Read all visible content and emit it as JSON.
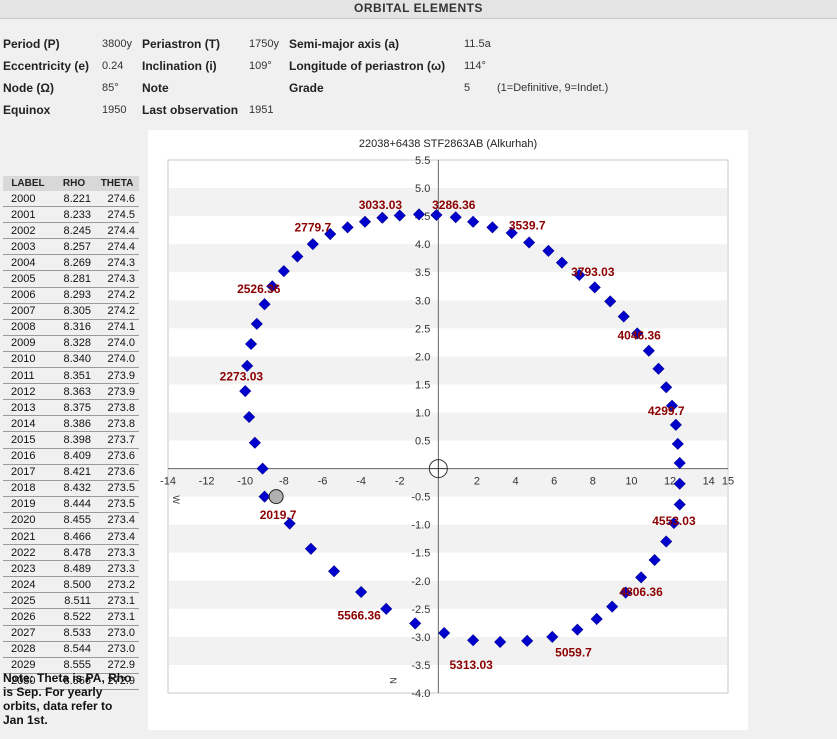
{
  "header": {
    "title": "ORBITAL ELEMENTS"
  },
  "elements": {
    "period": {
      "label": "Period (P)",
      "value": "3800y"
    },
    "periastron": {
      "label": "Periastron (T)",
      "value": "1750y"
    },
    "semimajor": {
      "label": "Semi-major axis (a)",
      "value": "11.5a"
    },
    "eccentricity": {
      "label": "Eccentricity (e)",
      "value": "0.24"
    },
    "inclination": {
      "label": "Inclination (i)",
      "value": "109°"
    },
    "longitude": {
      "label": "Longitude of periastron (ω)",
      "value": "114°"
    },
    "node": {
      "label": "Node (Ω)",
      "value": "85°"
    },
    "note": {
      "label": "Note",
      "value": ""
    },
    "grade": {
      "label": "Grade",
      "value": "5",
      "scale": "(1=Definitive, 9=Indet.)"
    },
    "equinox": {
      "label": "Equinox",
      "value": "1950"
    },
    "lastobs": {
      "label": "Last observation",
      "value": "1951"
    }
  },
  "table": {
    "headers": [
      "LABEL",
      "RHO",
      "THETA"
    ],
    "rows": [
      [
        "2000",
        "8.221",
        "274.6"
      ],
      [
        "2001",
        "8.233",
        "274.5"
      ],
      [
        "2002",
        "8.245",
        "274.4"
      ],
      [
        "2003",
        "8.257",
        "274.4"
      ],
      [
        "2004",
        "8.269",
        "274.3"
      ],
      [
        "2005",
        "8.281",
        "274.3"
      ],
      [
        "2006",
        "8.293",
        "274.2"
      ],
      [
        "2007",
        "8.305",
        "274.2"
      ],
      [
        "2008",
        "8.316",
        "274.1"
      ],
      [
        "2009",
        "8.328",
        "274.0"
      ],
      [
        "2010",
        "8.340",
        "274.0"
      ],
      [
        "2011",
        "8.351",
        "273.9"
      ],
      [
        "2012",
        "8.363",
        "273.9"
      ],
      [
        "2013",
        "8.375",
        "273.8"
      ],
      [
        "2014",
        "8.386",
        "273.8"
      ],
      [
        "2015",
        "8.398",
        "273.7"
      ],
      [
        "2016",
        "8.409",
        "273.6"
      ],
      [
        "2017",
        "8.421",
        "273.6"
      ],
      [
        "2018",
        "8.432",
        "273.5"
      ],
      [
        "2019",
        "8.444",
        "273.5"
      ],
      [
        "2020",
        "8.455",
        "273.4"
      ],
      [
        "2021",
        "8.466",
        "273.4"
      ],
      [
        "2022",
        "8.478",
        "273.3"
      ],
      [
        "2023",
        "8.489",
        "273.3"
      ],
      [
        "2024",
        "8.500",
        "273.2"
      ],
      [
        "2025",
        "8.511",
        "273.1"
      ],
      [
        "2026",
        "8.522",
        "273.1"
      ],
      [
        "2027",
        "8.533",
        "273.0"
      ],
      [
        "2028",
        "8.544",
        "273.0"
      ],
      [
        "2029",
        "8.555",
        "272.9"
      ],
      [
        "2030",
        "8.566",
        "272.9"
      ]
    ]
  },
  "footnote": "Note: Theta is PA, Rho is Sep. For yearly orbits, data refer to Jan 1st.",
  "chart_data": {
    "type": "scatter",
    "title": "22038+6438 STF2863AB (Alkurhah)",
    "xlim": [
      -14,
      15
    ],
    "ylim": [
      -4.0,
      5.5
    ],
    "x_ticks": [
      "-14",
      "-12",
      "-10",
      "-8",
      "-6",
      "-4",
      "-2",
      "2",
      "4",
      "6",
      "8",
      "10",
      "12",
      "14",
      "15"
    ],
    "y_ticks": [
      "5.5",
      "5.0",
      "4.5",
      "4.0",
      "3.5",
      "3.0",
      "2.5",
      "2.0",
      "1.5",
      "1.0",
      "0.5",
      "-0.5",
      "-1.0",
      "-1.5",
      "-2.0",
      "-2.5",
      "-3.0",
      "-3.5",
      "-4.0"
    ],
    "axis_markers": {
      "west": "W",
      "north": "N"
    },
    "grid": "alternating horizontal bands",
    "colors": {
      "orbit_point": "#0000cc",
      "label": "#8b0000",
      "band": "#f2f2f2",
      "center_marker": "#999999"
    },
    "center_marker": {
      "x": 0,
      "y": 0
    },
    "current_position": {
      "x": -8.4,
      "y": -0.5,
      "label": "2019.7"
    },
    "orbit_points": [
      [
        -0.1,
        4.52
      ],
      [
        0.9,
        4.48
      ],
      [
        1.8,
        4.4
      ],
      [
        2.8,
        4.3
      ],
      [
        3.8,
        4.2
      ],
      [
        4.7,
        4.03
      ],
      [
        5.7,
        3.88
      ],
      [
        6.4,
        3.67
      ],
      [
        7.3,
        3.45
      ],
      [
        8.1,
        3.23
      ],
      [
        8.9,
        2.98
      ],
      [
        9.6,
        2.71
      ],
      [
        10.3,
        2.41
      ],
      [
        10.9,
        2.1
      ],
      [
        11.4,
        1.78
      ],
      [
        11.8,
        1.45
      ],
      [
        12.1,
        1.12
      ],
      [
        12.3,
        0.78
      ],
      [
        12.4,
        0.44
      ],
      [
        12.5,
        0.1
      ],
      [
        12.5,
        -0.27
      ],
      [
        12.5,
        -0.64
      ],
      [
        12.2,
        -0.97
      ],
      [
        11.8,
        -1.3
      ],
      [
        11.2,
        -1.63
      ],
      [
        10.5,
        -1.94
      ],
      [
        9.7,
        -2.21
      ],
      [
        9.0,
        -2.46
      ],
      [
        8.2,
        -2.68
      ],
      [
        7.2,
        -2.87
      ],
      [
        5.9,
        -3.0
      ],
      [
        4.6,
        -3.07
      ],
      [
        3.2,
        -3.09
      ],
      [
        1.8,
        -3.06
      ],
      [
        0.3,
        -2.93
      ],
      [
        -1.2,
        -2.76
      ],
      [
        -2.7,
        -2.5
      ],
      [
        -4.0,
        -2.2
      ],
      [
        -5.4,
        -1.83
      ],
      [
        -6.6,
        -1.43
      ],
      [
        -7.7,
        -0.98
      ],
      [
        -9.0,
        -0.5
      ],
      [
        -9.1,
        0.0
      ],
      [
        -9.5,
        0.46
      ],
      [
        -9.8,
        0.92
      ],
      [
        -10.0,
        1.38
      ],
      [
        -9.9,
        1.83
      ],
      [
        -9.7,
        2.22
      ],
      [
        -9.4,
        2.58
      ],
      [
        -9.0,
        2.93
      ],
      [
        -8.6,
        3.25
      ],
      [
        -8.0,
        3.52
      ],
      [
        -7.3,
        3.78
      ],
      [
        -6.5,
        4.0
      ],
      [
        -5.6,
        4.18
      ],
      [
        -4.7,
        4.3
      ],
      [
        -3.8,
        4.4
      ],
      [
        -2.9,
        4.47
      ],
      [
        -2.0,
        4.51
      ],
      [
        -1.0,
        4.53
      ]
    ],
    "point_labels": [
      {
        "text": "3033.03",
        "x": -3.0,
        "y": 4.7
      },
      {
        "text": "3286.36",
        "x": 0.8,
        "y": 4.7
      },
      {
        "text": "3539.7",
        "x": 4.6,
        "y": 4.33
      },
      {
        "text": "2779.7",
        "x": -6.5,
        "y": 4.3
      },
      {
        "text": "3793.03",
        "x": 8.0,
        "y": 3.5
      },
      {
        "text": "2526.36",
        "x": -9.3,
        "y": 3.2
      },
      {
        "text": "4046.36",
        "x": 10.4,
        "y": 2.37
      },
      {
        "text": "2273.03",
        "x": -10.2,
        "y": 1.64
      },
      {
        "text": "4299.7",
        "x": 11.8,
        "y": 1.03
      },
      {
        "text": "2019.7",
        "x": -8.3,
        "y": -0.83
      },
      {
        "text": "4553.03",
        "x": 12.2,
        "y": -0.93
      },
      {
        "text": "4806.36",
        "x": 10.5,
        "y": -2.2
      },
      {
        "text": "5566.36",
        "x": -4.1,
        "y": -2.62
      },
      {
        "text": "5059.7",
        "x": 7.0,
        "y": -3.28
      },
      {
        "text": "5313.03",
        "x": 1.7,
        "y": -3.5
      }
    ]
  }
}
